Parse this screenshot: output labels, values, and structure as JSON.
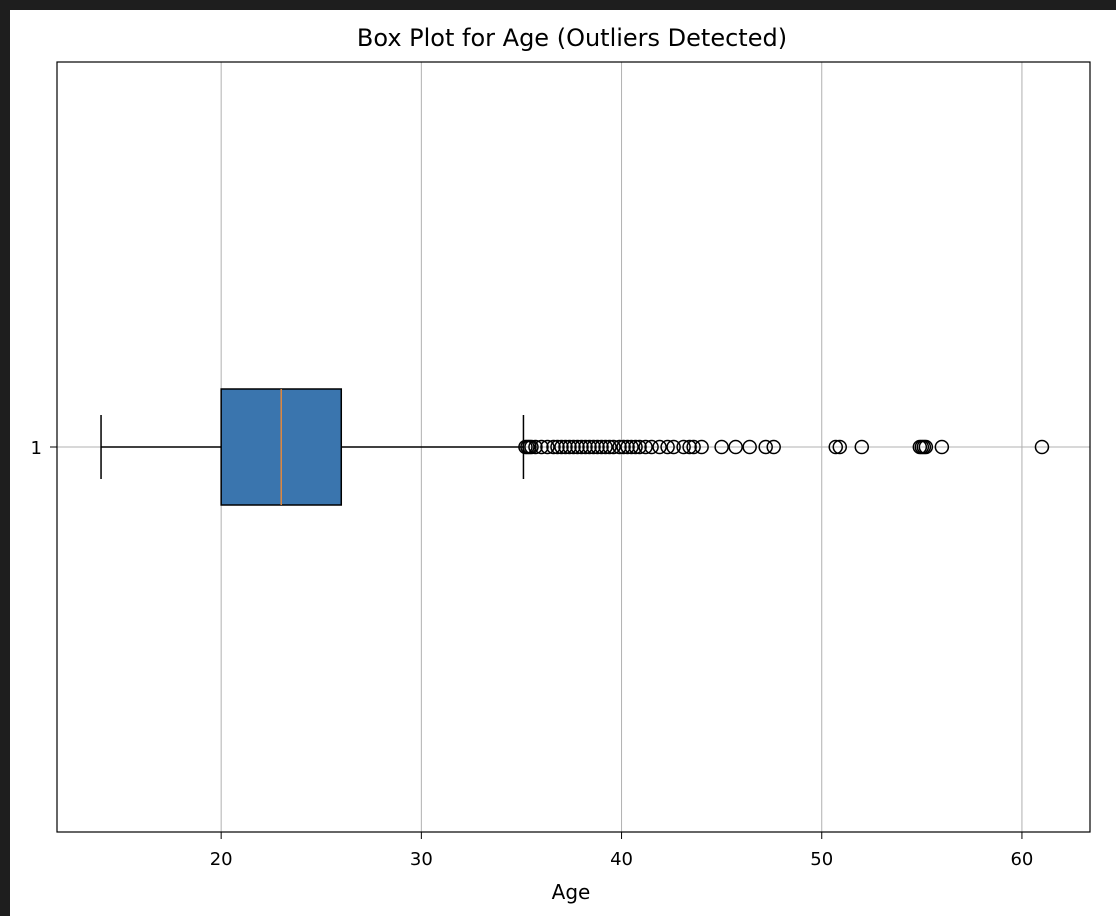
{
  "chart_data": {
    "type": "box",
    "orientation": "horizontal",
    "title": "Box Plot for Age (Outliers Detected)",
    "xlabel": "Age",
    "ylabel": "",
    "category_labels": [
      "1"
    ],
    "xlim": [
      11.8,
      63.4
    ],
    "x_ticks": [
      20,
      30,
      40,
      50,
      60
    ],
    "grid": true,
    "box_color": "#3a75ae",
    "median_color": "#e0883f",
    "box": {
      "whisker_low": 14,
      "q1": 20,
      "median": 23,
      "q3": 26,
      "whisker_high": 35.1
    },
    "outliers": [
      35.2,
      35.3,
      35.4,
      35.5,
      35.7,
      36.0,
      36.3,
      36.6,
      36.8,
      37.0,
      37.2,
      37.4,
      37.6,
      37.8,
      38.0,
      38.2,
      38.4,
      38.6,
      38.8,
      39.0,
      39.2,
      39.4,
      39.6,
      39.9,
      40.1,
      40.3,
      40.5,
      40.7,
      40.9,
      41.2,
      41.5,
      41.9,
      42.3,
      42.6,
      43.1,
      43.4,
      43.6,
      44.0,
      45.0,
      45.7,
      46.4,
      47.2,
      47.6,
      50.7,
      50.9,
      52.0,
      54.9,
      55.0,
      55.1,
      55.2,
      56.0,
      61.0
    ]
  }
}
